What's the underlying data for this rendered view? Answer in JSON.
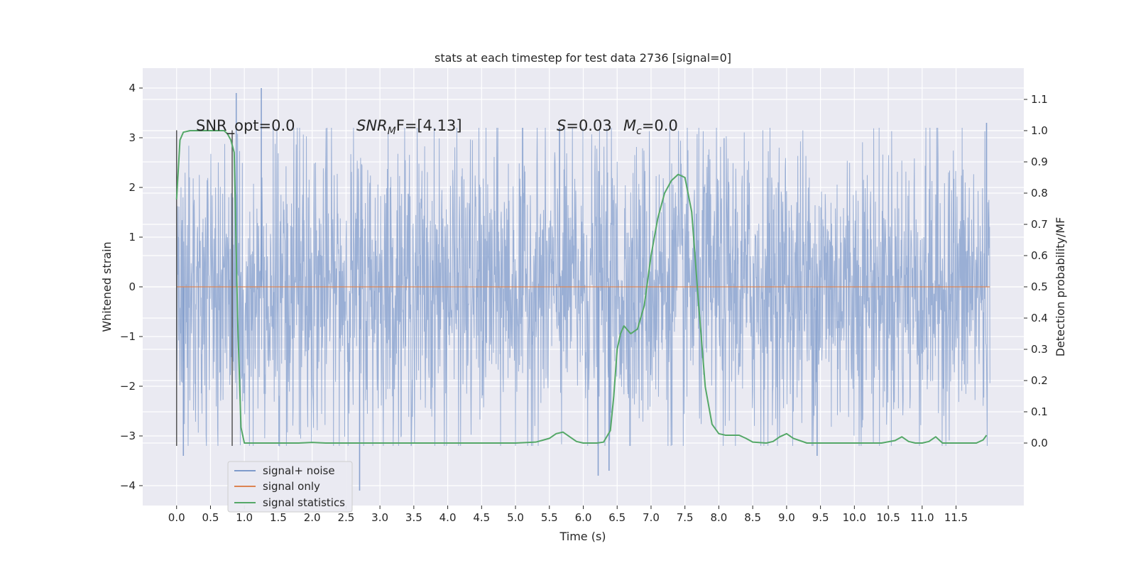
{
  "chart_data": {
    "type": "line",
    "title": "stats at each timestep for test data 2736 [signal=0]",
    "xlabel": "Time (s)",
    "ylabel_left": "Whitened strain",
    "ylabel_right": "Detection probability/MF",
    "xlim": [
      -0.5,
      12.5
    ],
    "ylim_left": [
      -4.4,
      4.4
    ],
    "ylim_right": [
      -0.2,
      1.2
    ],
    "x_ticks": [
      0.0,
      0.5,
      1.0,
      1.5,
      2.0,
      2.5,
      3.0,
      3.5,
      4.0,
      4.5,
      5.0,
      5.5,
      6.0,
      6.5,
      7.0,
      7.5,
      8.0,
      8.5,
      9.0,
      9.5,
      10.0,
      10.5,
      11.0,
      11.5
    ],
    "x_tick_labels": [
      "0.0",
      "0.5",
      "1.0",
      "1.5",
      "2.0",
      "2.5",
      "3.0",
      "3.5",
      "4.0",
      "4.5",
      "5.0",
      "5.5",
      "6.0",
      "6.5",
      "7.0",
      "7.5",
      "8.0",
      "8.5",
      "9.0",
      "9.5",
      "10.0",
      "10.5",
      "11.0",
      "11.5"
    ],
    "y_left_ticks": [
      4,
      3,
      2,
      1,
      0,
      -1,
      -2,
      -3,
      -4
    ],
    "y_left_tick_labels": [
      "4",
      "3",
      "2",
      "1",
      "0",
      "−1",
      "−2",
      "−3",
      "−4"
    ],
    "y_right_ticks": [
      1.1,
      1.0,
      0.9,
      0.8,
      0.7,
      0.6,
      0.5,
      0.4,
      0.3,
      0.2,
      0.1,
      0.0
    ],
    "y_right_tick_labels": [
      "1.1",
      "1.0",
      "0.9",
      "0.8",
      "0.7",
      "0.6",
      "0.5",
      "0.4",
      "0.3",
      "0.2",
      "0.1",
      "0.0"
    ],
    "grid": true,
    "legend_position": "lower-left",
    "annotations": {
      "snr_opt": "SNR_opt=0.0",
      "snr_mf": {
        "main": "SNR",
        "sub": "M",
        "tail": "F=[4.13]"
      },
      "s_value": {
        "main": "S",
        "tail": "=0.03"
      },
      "mc_value": {
        "main": "M",
        "sub": "c",
        "tail": "=0.0"
      }
    },
    "vertical_markers": [
      {
        "x": 0.0,
        "y_from": -3.2,
        "y_to": 3.15
      },
      {
        "x": 0.82,
        "y_from": -3.2,
        "y_to": 3.15
      }
    ],
    "series": [
      {
        "name": "signal+ noise",
        "color": "#7f9bcb",
        "kind": "noise",
        "x_range": [
          0.0,
          12.0
        ],
        "typical_amplitude": 2.4,
        "peaks": [
          {
            "x": 0.1,
            "y": -3.4
          },
          {
            "x": 0.88,
            "y": 3.9
          },
          {
            "x": 1.25,
            "y": 4.0
          },
          {
            "x": 2.7,
            "y": -4.1
          },
          {
            "x": 5.65,
            "y": 3.2
          },
          {
            "x": 6.22,
            "y": -3.8
          },
          {
            "x": 6.38,
            "y": -3.7
          },
          {
            "x": 9.45,
            "y": -3.4
          },
          {
            "x": 11.95,
            "y": 3.3
          }
        ]
      },
      {
        "name": "signal only",
        "color": "#dd8452",
        "x": [
          0.0,
          12.0
        ],
        "y": [
          0.0,
          0.0
        ]
      },
      {
        "name": "signal statistics",
        "color": "#55a868",
        "axis": "right",
        "x": [
          0.0,
          0.05,
          0.1,
          0.2,
          0.3,
          0.4,
          0.5,
          0.6,
          0.7,
          0.75,
          0.8,
          0.85,
          0.9,
          0.95,
          1.0,
          1.2,
          1.5,
          1.8,
          2.0,
          2.2,
          2.5,
          3.0,
          4.0,
          5.0,
          5.3,
          5.5,
          5.6,
          5.7,
          5.8,
          5.9,
          6.0,
          6.2,
          6.3,
          6.4,
          6.45,
          6.5,
          6.55,
          6.6,
          6.7,
          6.8,
          6.9,
          7.0,
          7.1,
          7.2,
          7.3,
          7.4,
          7.5,
          7.6,
          7.7,
          7.8,
          7.9,
          8.0,
          8.1,
          8.3,
          8.4,
          8.5,
          8.7,
          8.8,
          8.9,
          9.0,
          9.1,
          9.3,
          9.5,
          10.0,
          10.4,
          10.6,
          10.7,
          10.8,
          10.9,
          11.0,
          11.1,
          11.2,
          11.3,
          11.4,
          11.5,
          11.6,
          11.8,
          11.9,
          11.95
        ],
        "y": [
          0.78,
          0.97,
          0.995,
          1.0,
          1.0,
          1.0,
          1.0,
          1.0,
          1.0,
          0.99,
          0.97,
          0.93,
          0.4,
          0.05,
          0.0,
          0.0,
          0.0,
          0.0,
          0.002,
          0.0,
          0.0,
          0.0,
          0.0,
          0.0,
          0.003,
          0.015,
          0.03,
          0.035,
          0.02,
          0.005,
          0.0,
          0.0,
          0.003,
          0.04,
          0.15,
          0.3,
          0.35,
          0.375,
          0.35,
          0.365,
          0.44,
          0.6,
          0.72,
          0.8,
          0.84,
          0.86,
          0.85,
          0.74,
          0.45,
          0.18,
          0.06,
          0.03,
          0.025,
          0.025,
          0.015,
          0.003,
          0.0,
          0.005,
          0.02,
          0.03,
          0.015,
          0.0,
          0.0,
          0.0,
          0.0,
          0.008,
          0.02,
          0.005,
          0.0,
          0.0,
          0.005,
          0.02,
          0.0,
          0.0,
          0.0,
          0.0,
          0.0,
          0.01,
          0.025
        ]
      }
    ]
  }
}
